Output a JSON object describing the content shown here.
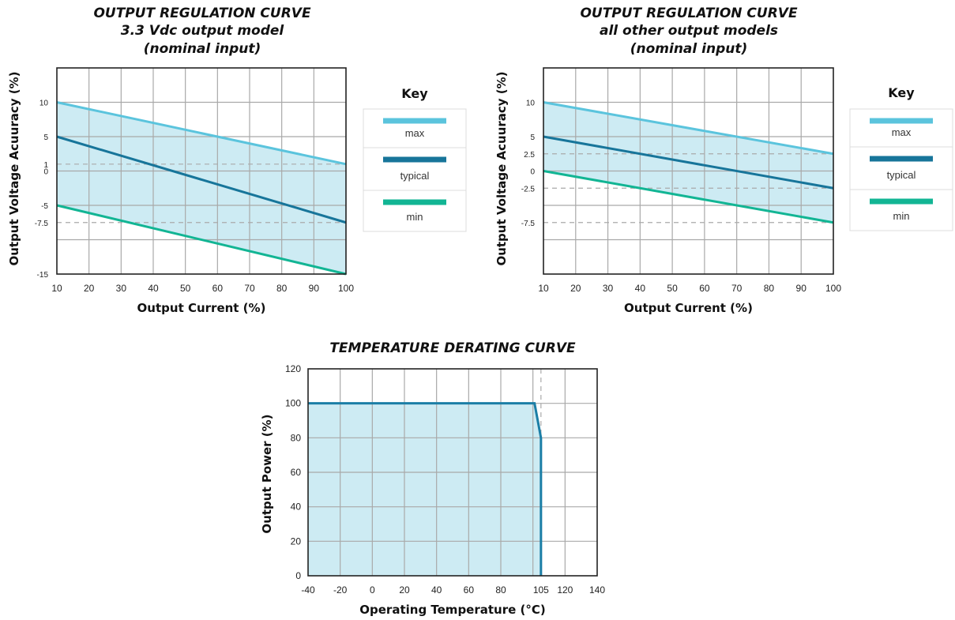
{
  "colors": {
    "max": "#5bc4dd",
    "typical": "#17759a",
    "min": "#12b594",
    "fill": "#cdebf3",
    "derating_line": "#1b7ea6",
    "grid": "#a9a9a9",
    "dashed": "#aaaaaa"
  },
  "chart_data": [
    {
      "type": "line",
      "title_lines": [
        "OUTPUT REGULATION CURVE",
        "3.3 Vdc output model",
        "(nominal input)"
      ],
      "xlabel": "Output Current (%)",
      "ylabel": "Output Voltage Acuuracy (%)",
      "xlim": [
        10,
        100
      ],
      "ylim": [
        -15,
        15
      ],
      "x_ticks": [
        "10",
        "20",
        "30",
        "40",
        "50",
        "60",
        "70",
        "80",
        "90",
        "100"
      ],
      "y_ticks": [
        {
          "value": 10,
          "label": "10"
        },
        {
          "value": 5,
          "label": "5"
        },
        {
          "value": 1,
          "label": "1"
        },
        {
          "value": 0,
          "label": "0"
        },
        {
          "value": -5,
          "label": "-5"
        },
        {
          "value": -7.5,
          "label": "-7.5"
        },
        {
          "value": -15,
          "label": "-15"
        }
      ],
      "dashed_y": [
        1,
        -7.5
      ],
      "series": [
        {
          "name": "max",
          "x": [
            10,
            100
          ],
          "y": [
            10,
            1
          ]
        },
        {
          "name": "typical",
          "x": [
            10,
            100
          ],
          "y": [
            5,
            -7.5
          ]
        },
        {
          "name": "min",
          "x": [
            10,
            100
          ],
          "y": [
            -5,
            -15
          ]
        }
      ],
      "key": {
        "title": "Key",
        "items": [
          "max",
          "typical",
          "min"
        ]
      }
    },
    {
      "type": "line",
      "title_lines": [
        "OUTPUT REGULATION CURVE",
        "all other output models",
        "(nominal input)"
      ],
      "xlabel": "Output Current (%)",
      "ylabel": "Output Voltage Acuuracy (%)",
      "xlim": [
        10,
        100
      ],
      "ylim": [
        -15,
        15
      ],
      "x_ticks": [
        "10",
        "20",
        "30",
        "40",
        "50",
        "60",
        "70",
        "80",
        "90",
        "100"
      ],
      "y_ticks": [
        {
          "value": 10,
          "label": "10"
        },
        {
          "value": 5,
          "label": "5"
        },
        {
          "value": 2.5,
          "label": "2.5"
        },
        {
          "value": 0,
          "label": "0"
        },
        {
          "value": -2.5,
          "label": "-2.5"
        },
        {
          "value": -7.5,
          "label": "-7.5"
        }
      ],
      "dashed_y": [
        2.5,
        -2.5,
        -7.5
      ],
      "series": [
        {
          "name": "max",
          "x": [
            10,
            100
          ],
          "y": [
            10,
            2.5
          ]
        },
        {
          "name": "typical",
          "x": [
            10,
            100
          ],
          "y": [
            5,
            -2.5
          ]
        },
        {
          "name": "min",
          "x": [
            10,
            100
          ],
          "y": [
            0,
            -7.5
          ]
        }
      ],
      "key": {
        "title": "Key",
        "items": [
          "max",
          "typical",
          "min"
        ]
      }
    },
    {
      "type": "area",
      "title_lines": [
        "TEMPERATURE DERATING CURVE"
      ],
      "xlabel": "Operating Temperature (°C)",
      "ylabel": "Output Power (%)",
      "xlim": [
        -40,
        140
      ],
      "ylim": [
        0,
        120
      ],
      "x_ticks": [
        "-40",
        "-20",
        "0",
        "20",
        "40",
        "60",
        "80",
        "105",
        "120",
        "140"
      ],
      "y_ticks": [
        "0",
        "20",
        "40",
        "60",
        "80",
        "100",
        "120"
      ],
      "dashed_x": 105,
      "series": [
        {
          "x": [
            -40,
            101,
            105,
            105
          ],
          "y": [
            100,
            100,
            80,
            0
          ]
        }
      ]
    }
  ]
}
